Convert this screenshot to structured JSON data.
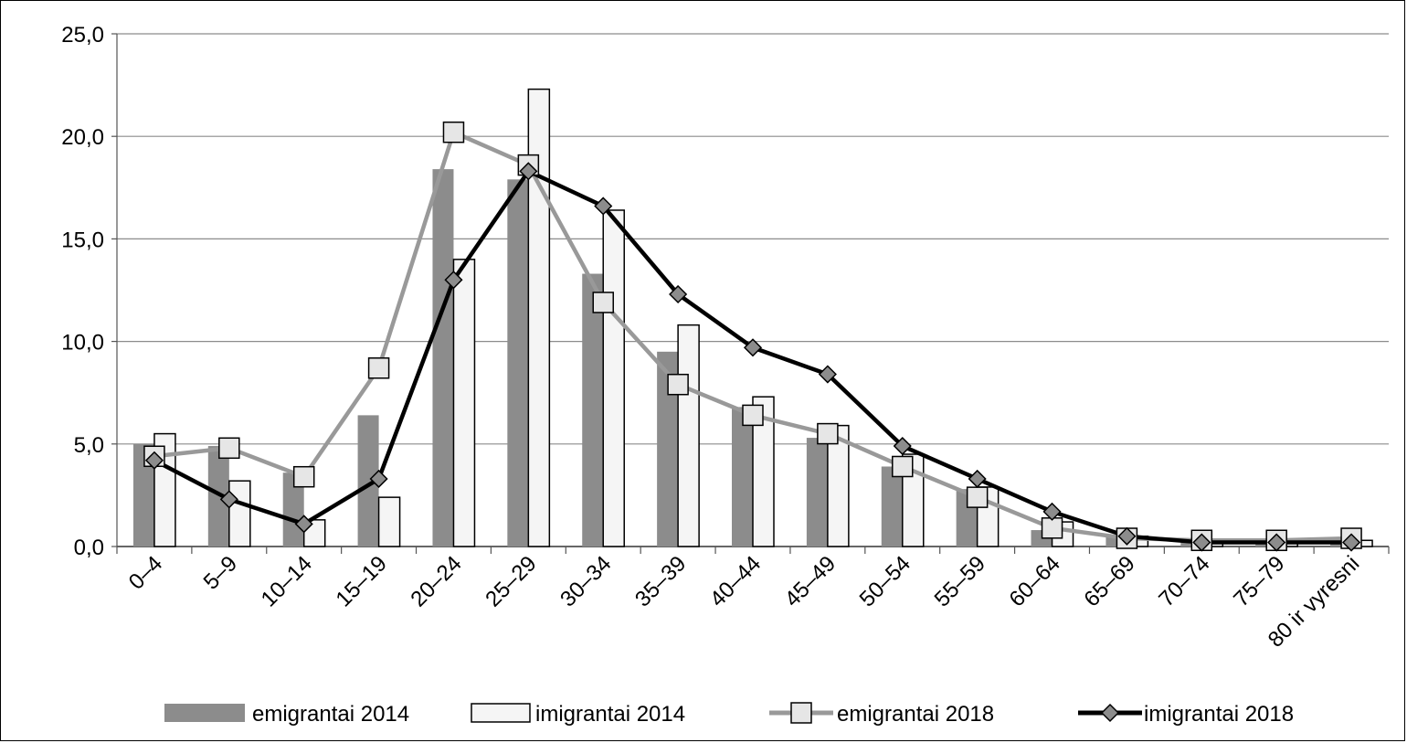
{
  "chart_data": {
    "type": "bar",
    "categories": [
      "0–4",
      "5–9",
      "10–14",
      "15–19",
      "20–24",
      "25–29",
      "30–34",
      "35–39",
      "40–44",
      "45–49",
      "50–54",
      "55–59",
      "60–64",
      "65–69",
      "70–74",
      "75–79",
      "80 ir vyresni"
    ],
    "ylim": [
      0,
      25
    ],
    "yticks": [
      "0,0",
      "5,0",
      "10,0",
      "15,0",
      "20,0",
      "25,0"
    ],
    "grid": true,
    "legend_position": "bottom",
    "series": [
      {
        "name": "emigrantai 2014",
        "kind": "bar",
        "color": "#8c8c8c",
        "values": [
          5.0,
          4.9,
          3.6,
          6.4,
          18.4,
          17.9,
          13.3,
          9.5,
          6.8,
          5.3,
          3.9,
          2.8,
          0.8,
          0.5,
          0.2,
          0.2,
          0.3
        ]
      },
      {
        "name": "imigrantai 2014",
        "kind": "bar",
        "color": "#f5f5f5",
        "values": [
          5.5,
          3.2,
          1.3,
          2.4,
          14.0,
          22.3,
          16.4,
          10.8,
          7.3,
          5.9,
          4.5,
          2.9,
          1.2,
          0.5,
          0.2,
          0.2,
          0.3
        ]
      },
      {
        "name": "emigrantai 2018",
        "kind": "line",
        "color": "#999999",
        "marker": "square",
        "values": [
          4.4,
          4.8,
          3.4,
          8.7,
          20.2,
          18.6,
          11.9,
          7.9,
          6.4,
          5.5,
          3.9,
          2.4,
          0.9,
          0.4,
          0.3,
          0.3,
          0.4
        ]
      },
      {
        "name": "imigrantai 2018",
        "kind": "line",
        "color": "#000000",
        "marker": "diamond",
        "values": [
          4.2,
          2.3,
          1.1,
          3.3,
          13.0,
          18.3,
          16.6,
          12.3,
          9.7,
          8.4,
          4.9,
          3.3,
          1.7,
          0.5,
          0.2,
          0.2,
          0.2
        ]
      }
    ]
  }
}
